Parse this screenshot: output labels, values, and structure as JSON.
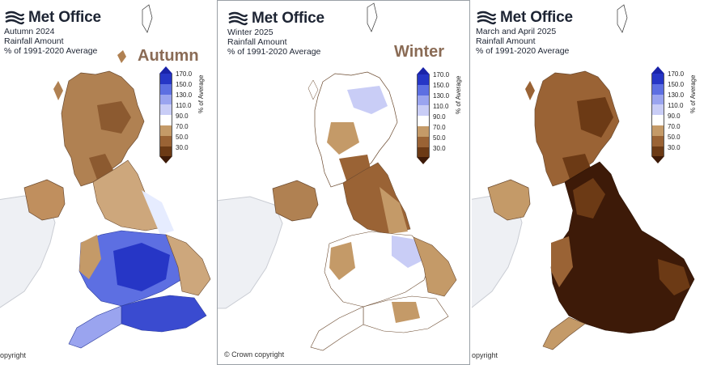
{
  "brand": "Met Office",
  "copyright": "© Crown copyright",
  "colorbar": {
    "label": "% of Average",
    "ticks": [
      "170.0",
      "150.0",
      "130.0",
      "110.0",
      "90.0",
      "70.0",
      "50.0",
      "30.0"
    ],
    "colors": [
      "#2636c6",
      "#5d6fe2",
      "#9aa4ef",
      "#c9cdf6",
      "#ffffff",
      "#c49a68",
      "#9a6335",
      "#6c3a15",
      "#3d1a08"
    ]
  },
  "panels": [
    {
      "titles": [
        "Autumn 2024",
        "Rainfall Amount",
        "% of 1991-2020 Average"
      ],
      "season": "Autumn",
      "copyright_visible": "opyright"
    },
    {
      "titles": [
        "Winter 2025",
        "Rainfall Amount",
        "% of 1991-2020 Average"
      ],
      "season": "Winter",
      "copyright_visible": "© Crown copyright"
    },
    {
      "titles": [
        "March and April 2025",
        "Rainfall Amount",
        "% of 1991-2020 Average"
      ],
      "season": "",
      "copyright_visible": "opyright"
    }
  ]
}
